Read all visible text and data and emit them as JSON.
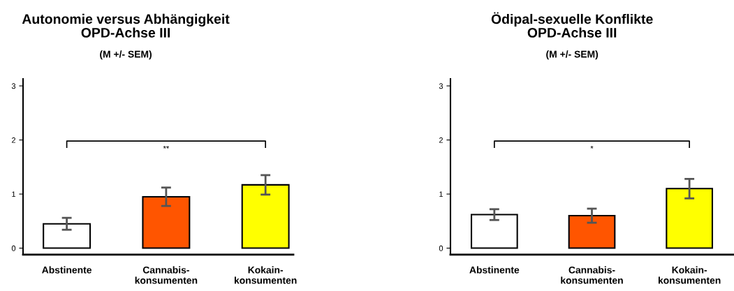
{
  "chart_data": [
    {
      "type": "bar",
      "title": "Autonomie versus Abhängigkeit\nOPD-Achse III",
      "subtitle": "(M +/- SEM)",
      "categories": [
        "Abstinente",
        "Cannabis-\nkonsumenten",
        "Kokain-\nkonsumenten"
      ],
      "values": [
        0.45,
        0.95,
        1.17
      ],
      "errors": [
        0.11,
        0.17,
        0.18
      ],
      "colors": [
        "#ffffff",
        "#ff5500",
        "#ffff00"
      ],
      "ylim": [
        -0.12,
        3.13
      ],
      "yticks": [
        0,
        1,
        2,
        3
      ],
      "grid": false,
      "annotations": [
        "**"
      ]
    },
    {
      "type": "bar",
      "title": "Ödipal-sexuelle Konflikte\nOPD-Achse III",
      "subtitle": "(M +/- SEM)",
      "categories": [
        "Abstinente",
        "Cannabis-\nkonsumenten",
        "Kokain-\nkonsumenten"
      ],
      "values": [
        0.62,
        0.6,
        1.1
      ],
      "errors": [
        0.1,
        0.13,
        0.18
      ],
      "colors": [
        "#ffffff",
        "#ff5500",
        "#ffff00"
      ],
      "ylim": [
        -0.12,
        3.13
      ],
      "yticks": [
        0,
        1,
        2,
        3
      ],
      "grid": false,
      "annotations": [
        "*"
      ]
    }
  ]
}
